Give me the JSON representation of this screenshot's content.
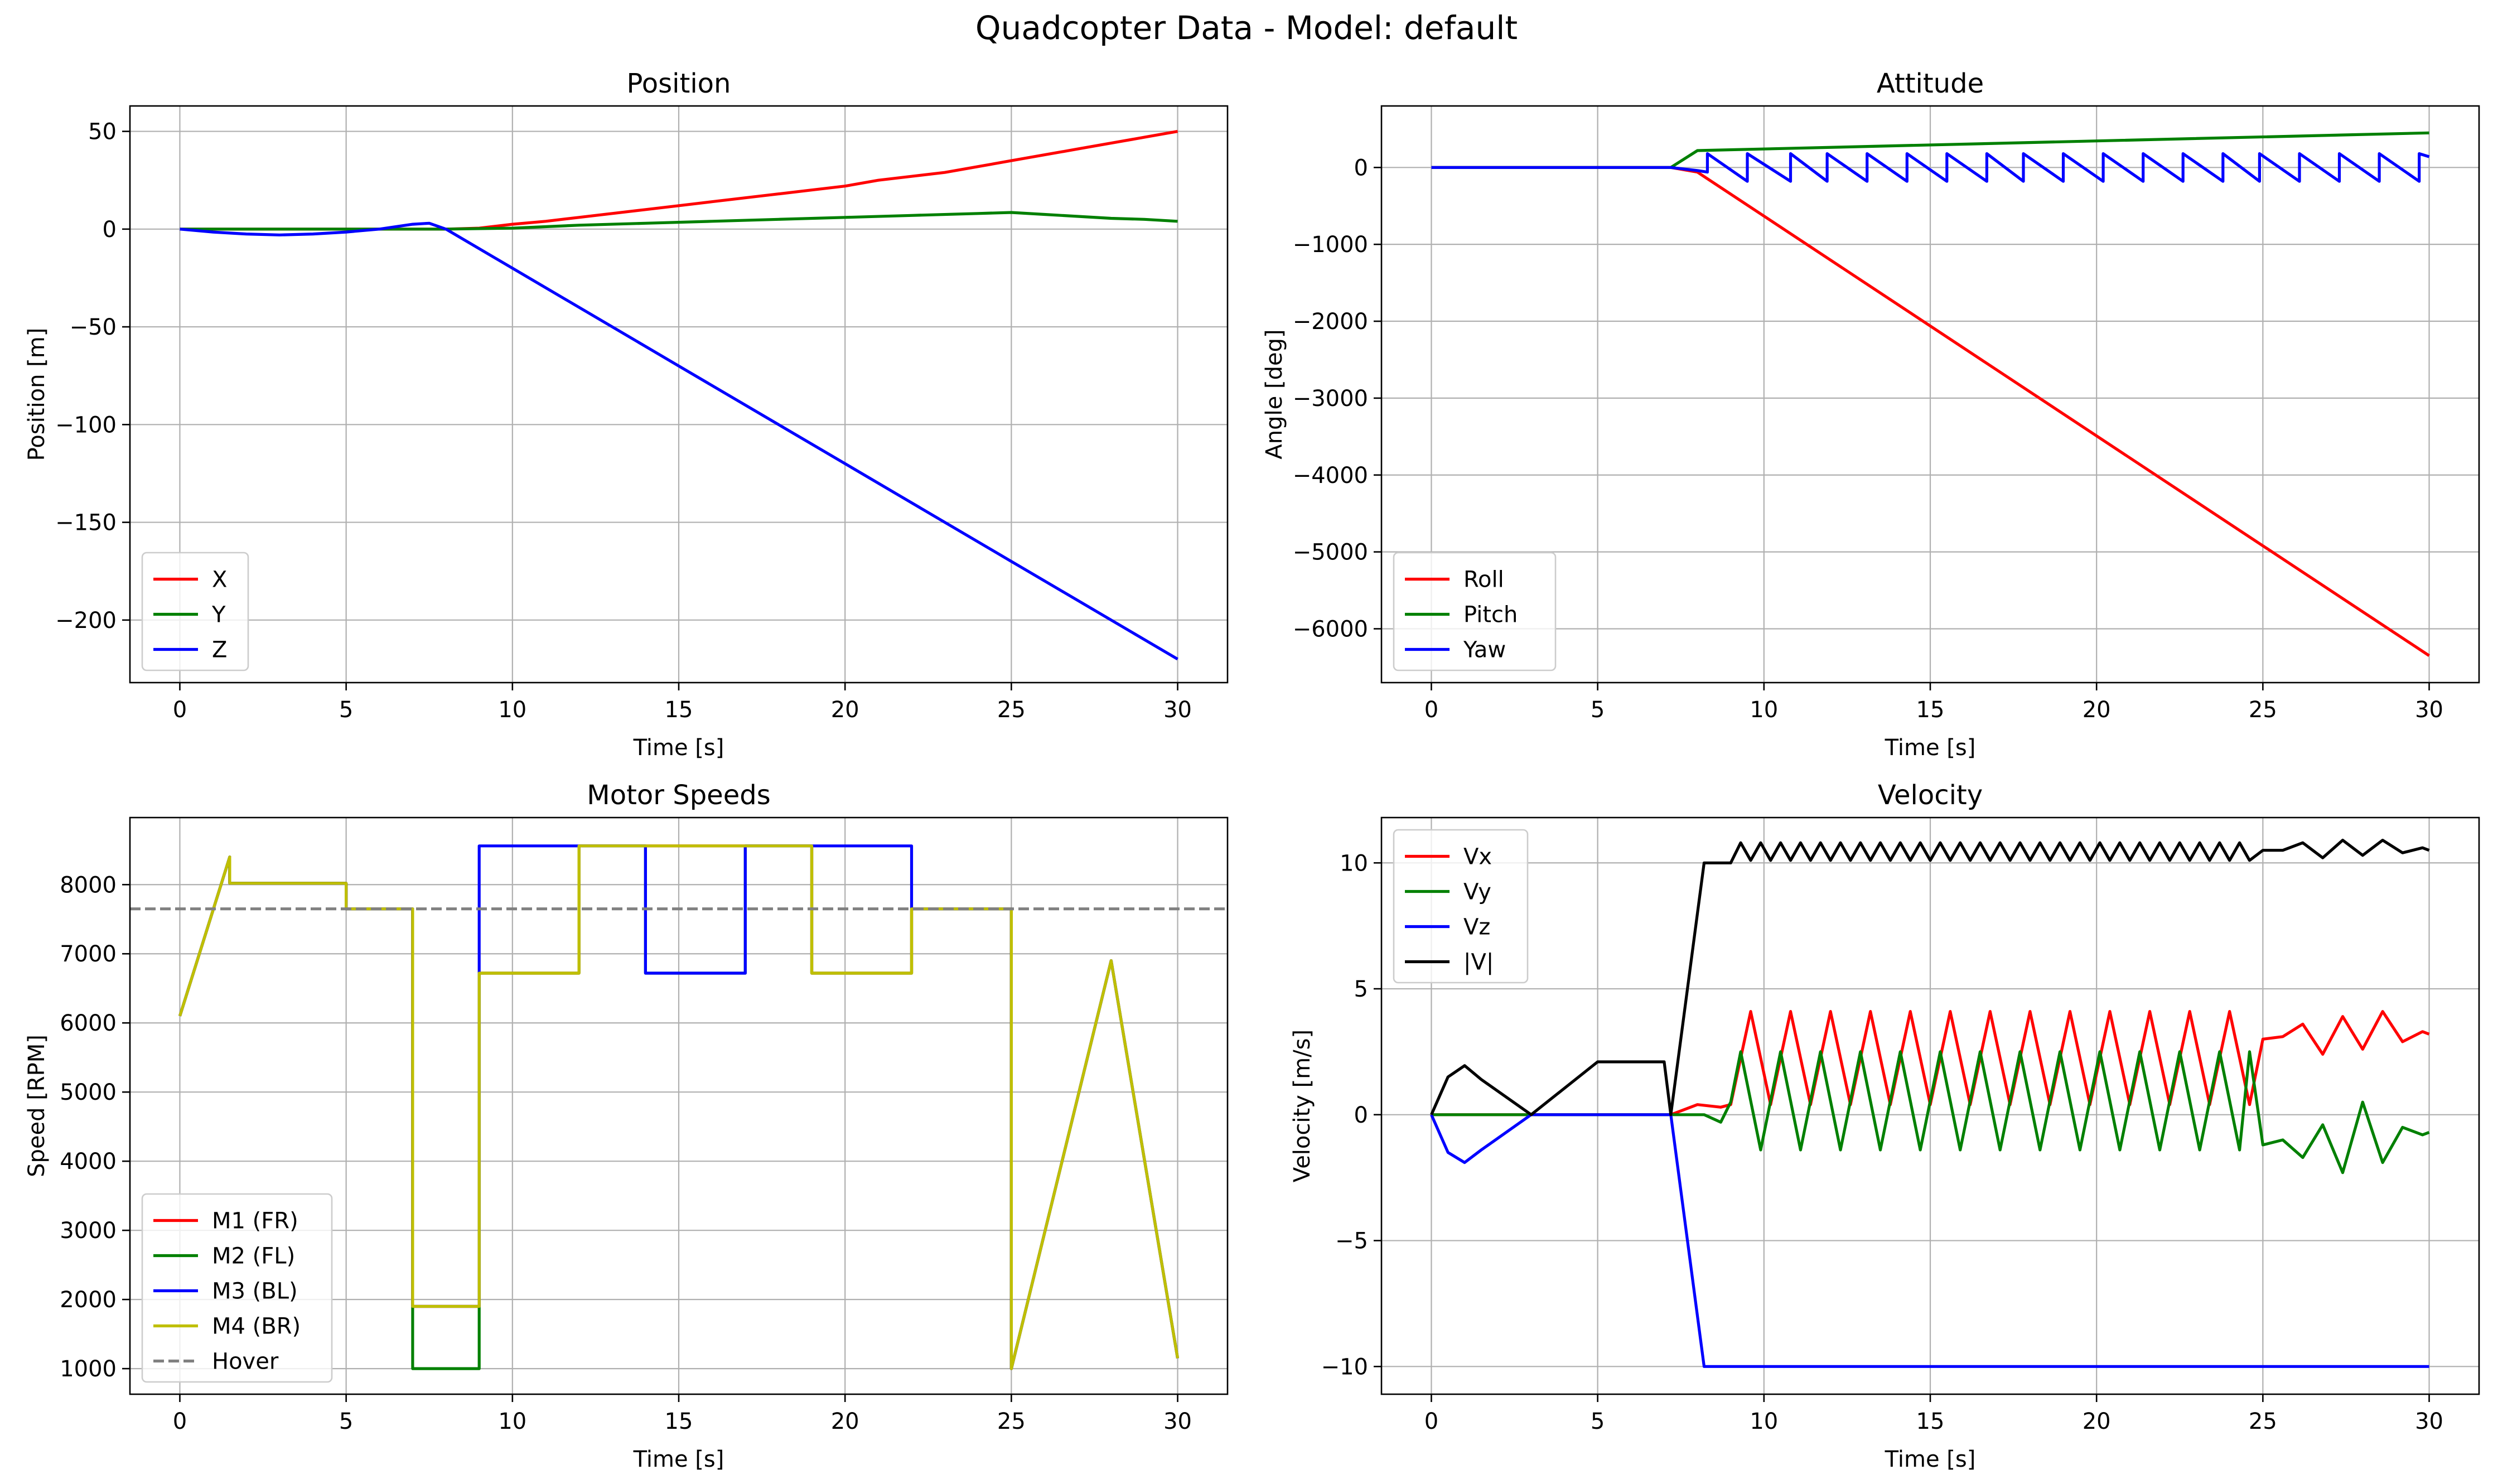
{
  "figure": {
    "title": "Quadcopter Data - Model: default"
  },
  "chart_data": [
    {
      "id": "position",
      "type": "line",
      "title": "Position",
      "xlabel": "Time [s]",
      "ylabel": "Position [m]",
      "xlim": [
        -1.5,
        31.5
      ],
      "ylim": [
        -232,
        63
      ],
      "xticks": [
        0,
        5,
        10,
        15,
        20,
        25,
        30
      ],
      "xtick_labels": [
        "0",
        "5",
        "10",
        "15",
        "20",
        "25",
        "30"
      ],
      "yticks": [
        50,
        0,
        -50,
        -100,
        -150,
        -200
      ],
      "ytick_labels": [
        "50",
        "0",
        "−50",
        "−100",
        "−150",
        "−200"
      ],
      "grid": true,
      "legend": "lower-left",
      "series": [
        {
          "name": "X",
          "color": "#ff0000",
          "x": [
            0,
            2,
            4,
            6,
            8,
            9,
            10,
            11,
            12,
            13,
            14,
            15,
            16,
            17,
            18,
            19,
            20,
            21,
            22,
            23,
            24,
            25,
            26,
            27,
            28,
            29,
            30
          ],
          "y": [
            0,
            0,
            0,
            0,
            0,
            0.5,
            2.5,
            4,
            6,
            8,
            10,
            12,
            14,
            16,
            18,
            20,
            22,
            25,
            27,
            29,
            32,
            35,
            38,
            41,
            44,
            47,
            50
          ]
        },
        {
          "name": "Y",
          "color": "#008000",
          "x": [
            0,
            2,
            4,
            6,
            8,
            10,
            12,
            14,
            16,
            18,
            20,
            22,
            24,
            25,
            26,
            27,
            28,
            29,
            30
          ],
          "y": [
            0,
            0,
            0,
            0,
            0,
            0.5,
            2,
            3,
            4,
            5,
            6,
            7,
            8,
            8.5,
            7.5,
            6.5,
            5.5,
            5,
            4
          ]
        },
        {
          "name": "Z",
          "color": "#0000ff",
          "x": [
            0,
            1,
            2,
            3,
            4,
            5,
            6,
            7,
            7.5,
            8,
            9,
            10,
            15,
            20,
            25,
            30
          ],
          "y": [
            0,
            -1.5,
            -2.5,
            -3,
            -2.5,
            -1.5,
            0,
            2.5,
            3,
            0,
            -10,
            -20,
            -70,
            -120,
            -170,
            -220
          ]
        }
      ]
    },
    {
      "id": "attitude",
      "type": "line",
      "title": "Attitude",
      "xlabel": "Time [s]",
      "ylabel": "Angle [deg]",
      "xlim": [
        -1.5,
        31.5
      ],
      "ylim": [
        -6700,
        800
      ],
      "xticks": [
        0,
        5,
        10,
        15,
        20,
        25,
        30
      ],
      "xtick_labels": [
        "0",
        "5",
        "10",
        "15",
        "20",
        "25",
        "30"
      ],
      "yticks": [
        0,
        -1000,
        -2000,
        -3000,
        -4000,
        -5000,
        -6000
      ],
      "ytick_labels": [
        "0",
        "−1000",
        "−2000",
        "−3000",
        "−4000",
        "−5000",
        "−6000"
      ],
      "grid": true,
      "legend": "lower-left",
      "series": [
        {
          "name": "Roll",
          "color": "#ff0000",
          "x": [
            0,
            7.2,
            8,
            30
          ],
          "y": [
            0,
            0,
            -60,
            -6350
          ]
        },
        {
          "name": "Pitch",
          "color": "#008000",
          "x": [
            0,
            7.2,
            8,
            30
          ],
          "y": [
            0,
            0,
            220,
            450
          ]
        },
        {
          "name": "Yaw",
          "color": "#0000ff",
          "x": [
            0,
            7.2,
            8,
            8.3,
            8.3,
            9.5,
            9.5,
            10.8,
            10.8,
            11.9,
            11.9,
            13.1,
            13.1,
            14.3,
            14.3,
            15.5,
            15.5,
            16.7,
            16.7,
            17.8,
            17.8,
            19.0,
            19.0,
            20.2,
            20.2,
            21.4,
            21.4,
            22.6,
            22.6,
            23.8,
            23.8,
            24.9,
            24.9,
            26.1,
            26.1,
            27.3,
            27.3,
            28.5,
            28.5,
            29.7,
            29.7,
            30
          ],
          "y": [
            0,
            0,
            -40,
            -60,
            180,
            -180,
            180,
            -180,
            180,
            -180,
            180,
            -180,
            180,
            -180,
            180,
            -180,
            180,
            -180,
            180,
            -180,
            180,
            -180,
            180,
            -180,
            180,
            -180,
            180,
            -180,
            180,
            -180,
            180,
            -180,
            180,
            -180,
            180,
            -180,
            180,
            -180,
            180,
            -180,
            180,
            140
          ]
        }
      ]
    },
    {
      "id": "motor-speeds",
      "type": "line",
      "title": "Motor Speeds",
      "xlabel": "Time [s]",
      "ylabel": "Speed [RPM]",
      "xlim": [
        -1.5,
        31.5
      ],
      "ylim": [
        630,
        8970
      ],
      "xticks": [
        0,
        5,
        10,
        15,
        20,
        25,
        30
      ],
      "xtick_labels": [
        "0",
        "5",
        "10",
        "15",
        "20",
        "25",
        "30"
      ],
      "yticks": [
        8000,
        7000,
        6000,
        5000,
        4000,
        3000,
        2000,
        1000
      ],
      "ytick_labels": [
        "8000",
        "7000",
        "6000",
        "5000",
        "4000",
        "3000",
        "2000",
        "1000"
      ],
      "grid": true,
      "legend": "lower-left",
      "series": [
        {
          "name": "M1 (FR)",
          "color": "#ff0000",
          "dash": "",
          "x": [
            0,
            1.5,
            1.5,
            5,
            5,
            7,
            7,
            9,
            9,
            12,
            12,
            19,
            19,
            22,
            22,
            25,
            25,
            28,
            30
          ],
          "y": [
            6100,
            8400,
            8020,
            8020,
            7650,
            7650,
            1900,
            1900,
            6720,
            6720,
            8560,
            8560,
            6720,
            6720,
            7650,
            7650,
            1000,
            6900,
            1150
          ]
        },
        {
          "name": "M2 (FL)",
          "color": "#008000",
          "dash": "",
          "x": [
            0,
            1.5,
            1.5,
            5,
            5,
            7,
            7,
            9,
            9,
            12,
            12,
            14,
            14,
            17,
            17,
            19,
            19,
            22,
            22,
            25,
            25,
            28,
            30
          ],
          "y": [
            6100,
            8400,
            8020,
            8020,
            7650,
            7650,
            1000,
            1000,
            6720,
            6720,
            8560,
            8560,
            6720,
            6720,
            8560,
            8560,
            6720,
            6720,
            7650,
            7650,
            1000,
            6900,
            1150
          ]
        },
        {
          "name": "M3 (BL)",
          "color": "#0000ff",
          "dash": "",
          "x": [
            0,
            1.5,
            1.5,
            5,
            5,
            7,
            7,
            9,
            9,
            14,
            14,
            17,
            17,
            22,
            22,
            25,
            25,
            28,
            30
          ],
          "y": [
            6100,
            8400,
            8020,
            8020,
            7650,
            7650,
            1900,
            1900,
            8560,
            8560,
            6720,
            6720,
            8560,
            8560,
            7650,
            7650,
            1000,
            6900,
            1150
          ]
        },
        {
          "name": "M4 (BR)",
          "color": "#bfbf00",
          "dash": "",
          "x": [
            0,
            1.5,
            1.5,
            5,
            5,
            7,
            7,
            9,
            9,
            12,
            12,
            19,
            19,
            22,
            22,
            25,
            25,
            28,
            30
          ],
          "y": [
            6100,
            8400,
            8020,
            8020,
            7650,
            7650,
            1900,
            1900,
            6720,
            6720,
            8560,
            8560,
            6720,
            6720,
            7650,
            7650,
            1000,
            6900,
            1150
          ]
        },
        {
          "name": "Hover",
          "color": "#808080",
          "dash": "dashed",
          "x": [
            -1.5,
            31.5
          ],
          "y": [
            7650,
            7650
          ]
        }
      ]
    },
    {
      "id": "velocity",
      "type": "line",
      "title": "Velocity",
      "xlabel": "Time [s]",
      "ylabel": "Velocity [m/s]",
      "xlim": [
        -1.5,
        31.5
      ],
      "ylim": [
        -11.1,
        11.8
      ],
      "xticks": [
        0,
        5,
        10,
        15,
        20,
        25,
        30
      ],
      "xtick_labels": [
        "0",
        "5",
        "10",
        "15",
        "20",
        "25",
        "30"
      ],
      "yticks": [
        10,
        5,
        0,
        -5,
        -10
      ],
      "ytick_labels": [
        "10",
        "5",
        "0",
        "−5",
        "−10"
      ],
      "grid": true,
      "legend": "upper-left",
      "series": [
        {
          "name": "Vx",
          "color": "#ff0000",
          "x": [
            0,
            7.2,
            8,
            8.7,
            9.0,
            9.6,
            10.2,
            10.8,
            11.4,
            12.0,
            12.6,
            13.2,
            13.8,
            14.4,
            15.0,
            15.6,
            16.2,
            16.8,
            17.4,
            18.0,
            18.6,
            19.2,
            19.8,
            20.4,
            21.0,
            21.6,
            22.2,
            22.8,
            23.4,
            24.0,
            24.6,
            25.0,
            25.6,
            26.2,
            26.8,
            27.4,
            28.0,
            28.6,
            29.2,
            29.8,
            30
          ],
          "y": [
            0,
            0,
            0.4,
            0.3,
            0.4,
            4.1,
            0.4,
            4.1,
            0.4,
            4.1,
            0.4,
            4.1,
            0.4,
            4.1,
            0.4,
            4.1,
            0.4,
            4.1,
            0.4,
            4.1,
            0.4,
            4.1,
            0.4,
            4.1,
            0.4,
            4.1,
            0.4,
            4.1,
            0.4,
            4.1,
            0.4,
            3.0,
            3.1,
            3.6,
            2.4,
            3.9,
            2.6,
            4.1,
            2.9,
            3.3,
            3.2
          ]
        },
        {
          "name": "Vy",
          "color": "#008000",
          "x": [
            0,
            7.2,
            8.2,
            8.7,
            9.0,
            9.3,
            9.9,
            10.5,
            11.1,
            11.7,
            12.3,
            12.9,
            13.5,
            14.1,
            14.7,
            15.3,
            15.9,
            16.5,
            17.1,
            17.7,
            18.3,
            18.9,
            19.5,
            20.1,
            20.7,
            21.3,
            21.9,
            22.5,
            23.1,
            23.7,
            24.3,
            24.6,
            25.0,
            25.6,
            26.2,
            26.8,
            27.4,
            28.0,
            28.6,
            29.2,
            29.8,
            30
          ],
          "y": [
            0,
            0,
            0,
            -0.3,
            0.5,
            2.5,
            -1.4,
            2.5,
            -1.4,
            2.5,
            -1.4,
            2.5,
            -1.4,
            2.5,
            -1.4,
            2.5,
            -1.4,
            2.5,
            -1.4,
            2.5,
            -1.4,
            2.5,
            -1.4,
            2.5,
            -1.4,
            2.5,
            -1.4,
            2.5,
            -1.4,
            2.5,
            -1.4,
            2.5,
            -1.2,
            -1.0,
            -1.7,
            -0.4,
            -2.3,
            0.5,
            -1.9,
            -0.5,
            -0.8,
            -0.7
          ]
        },
        {
          "name": "Vz",
          "color": "#0000ff",
          "x": [
            0,
            0.5,
            1.0,
            1.5,
            3.0,
            3.0,
            5.0,
            7.2,
            7.2,
            8.2,
            30
          ],
          "y": [
            0,
            -1.5,
            -1.9,
            -1.4,
            0,
            0,
            0,
            0,
            0,
            -10,
            -10
          ]
        },
        {
          "name": "|V|",
          "color": "#000000",
          "x": [
            0,
            0.5,
            1.0,
            1.5,
            3.0,
            5.0,
            7.0,
            7.2,
            8.2,
            9.0,
            9.3,
            9.6,
            9.9,
            10.2,
            10.5,
            10.8,
            11.1,
            11.4,
            11.7,
            12.0,
            12.3,
            12.6,
            12.9,
            13.2,
            13.5,
            13.8,
            14.1,
            14.4,
            14.7,
            15.0,
            15.3,
            15.6,
            15.9,
            16.2,
            16.5,
            16.8,
            17.1,
            17.4,
            17.7,
            18.0,
            18.3,
            18.6,
            18.9,
            19.2,
            19.5,
            19.8,
            20.1,
            20.4,
            20.7,
            21.0,
            21.3,
            21.6,
            21.9,
            22.2,
            22.5,
            22.8,
            23.1,
            23.4,
            23.7,
            24.0,
            24.3,
            24.6,
            25.0,
            25.6,
            26.2,
            26.8,
            27.4,
            28.0,
            28.6,
            29.2,
            29.8,
            30
          ],
          "y": [
            0,
            1.5,
            1.95,
            1.4,
            0,
            2.1,
            2.1,
            0,
            10.0,
            10.0,
            10.8,
            10.1,
            10.8,
            10.1,
            10.8,
            10.1,
            10.8,
            10.1,
            10.8,
            10.1,
            10.8,
            10.1,
            10.8,
            10.1,
            10.8,
            10.1,
            10.8,
            10.1,
            10.8,
            10.1,
            10.8,
            10.1,
            10.8,
            10.1,
            10.8,
            10.1,
            10.8,
            10.1,
            10.8,
            10.1,
            10.8,
            10.1,
            10.8,
            10.1,
            10.8,
            10.1,
            10.8,
            10.1,
            10.8,
            10.1,
            10.8,
            10.1,
            10.8,
            10.1,
            10.8,
            10.1,
            10.8,
            10.1,
            10.8,
            10.1,
            10.8,
            10.1,
            10.5,
            10.5,
            10.8,
            10.2,
            10.9,
            10.3,
            10.9,
            10.4,
            10.6,
            10.5
          ]
        }
      ]
    }
  ]
}
